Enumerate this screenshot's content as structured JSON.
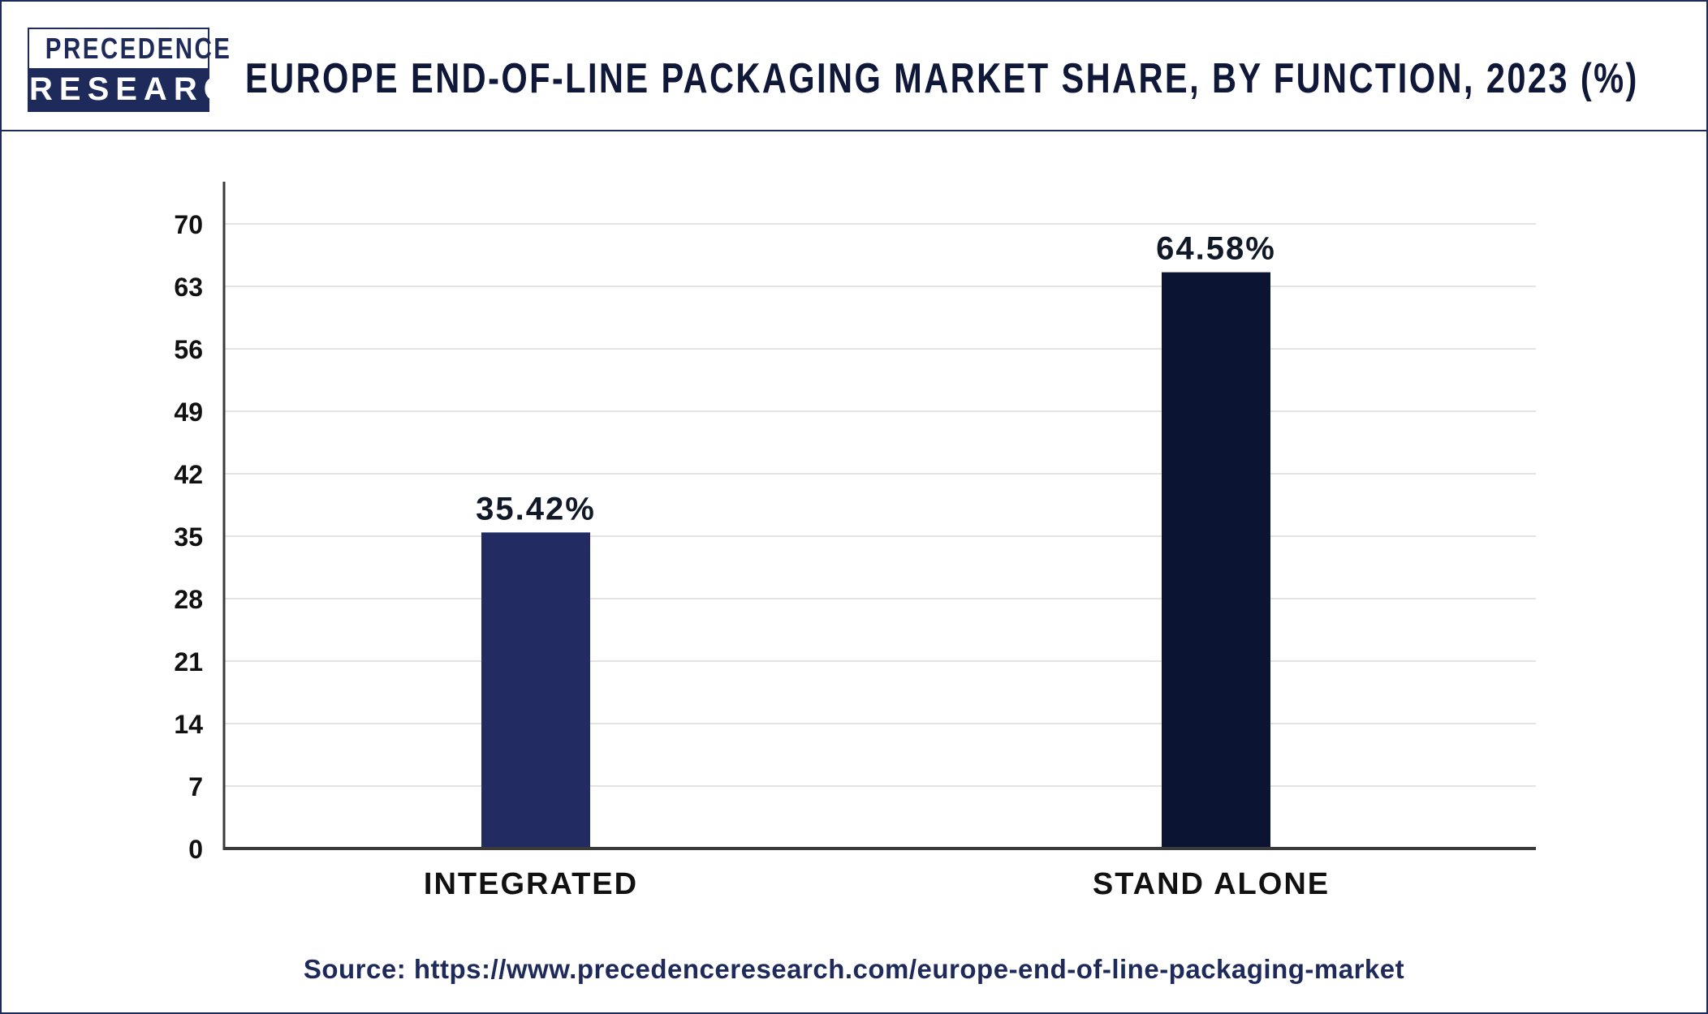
{
  "header": {
    "logo_top": "PRECEDENCE",
    "logo_bottom": "RESEARCH",
    "title": "EUROPE END-OF-LINE PACKAGING MARKET SHARE, BY FUNCTION, 2023 (%)"
  },
  "source": "Source: https://www.precedenceresearch.com/europe-end-of-line-packaging-market",
  "chart_data": {
    "type": "bar",
    "title": "EUROPE END-OF-LINE PACKAGING MARKET SHARE, BY FUNCTION, 2023 (%)",
    "xlabel": "",
    "ylabel": "",
    "categories": [
      "INTEGRATED",
      "STAND ALONE"
    ],
    "values": [
      35.42,
      64.58
    ],
    "data_labels": [
      "35.42%",
      "64.58%"
    ],
    "colors": [
      "#232b63",
      "#0b1432"
    ],
    "ylim": [
      0,
      70
    ],
    "yticks": [
      0,
      7,
      14,
      21,
      28,
      35,
      42,
      49,
      56,
      63,
      70
    ],
    "grid": true,
    "legend": "none"
  }
}
